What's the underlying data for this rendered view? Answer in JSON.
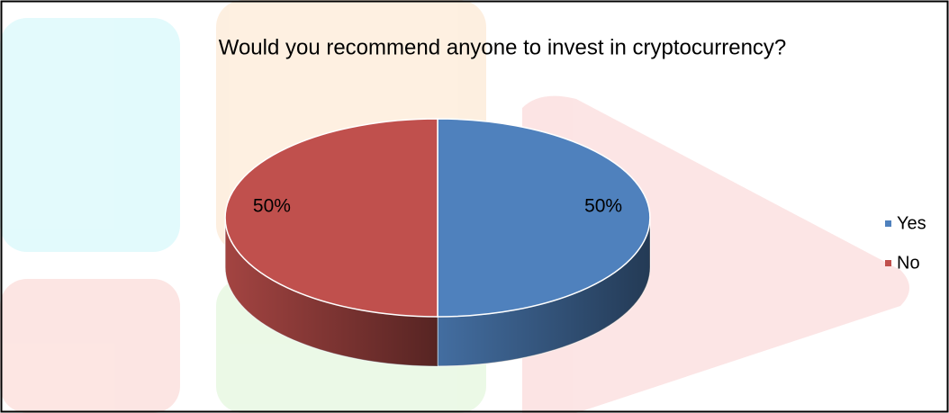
{
  "chart_data": {
    "type": "pie",
    "title": "Would you recommend anyone to invest in cryptocurrency?",
    "categories": [
      "Yes",
      "No"
    ],
    "values": [
      50,
      50
    ],
    "value_labels": [
      "50%",
      "50%"
    ],
    "colors": [
      "#4f81bd",
      "#c0504d"
    ],
    "legend": "right"
  }
}
